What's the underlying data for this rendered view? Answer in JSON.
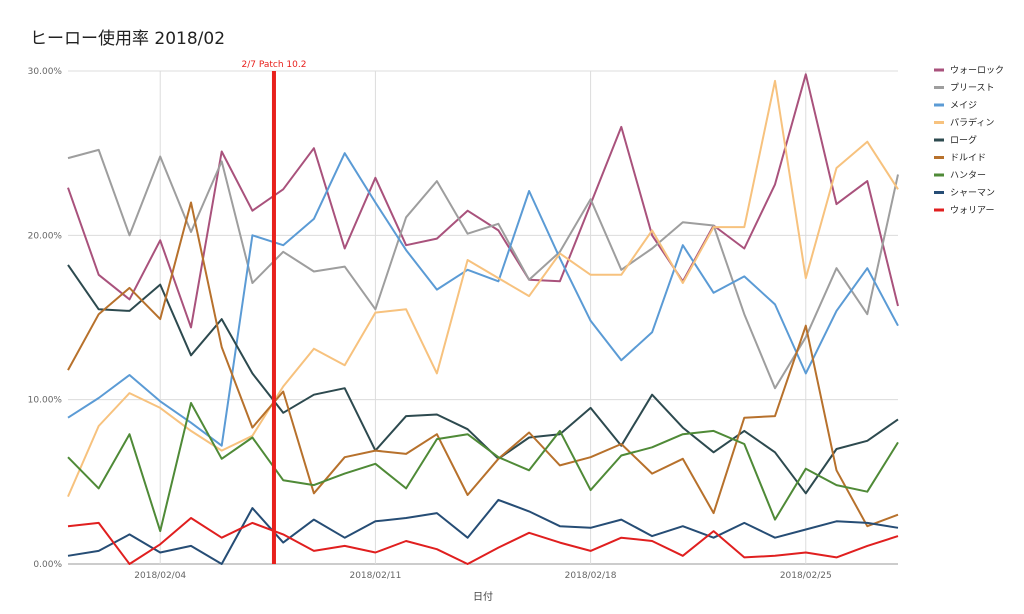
{
  "chart_data": {
    "type": "line",
    "title": "ヒーロー使用率 2018/02",
    "xlabel": "日付",
    "ylabel": "",
    "ylim": [
      0,
      30
    ],
    "grid": true,
    "legend_position": "right",
    "x": [
      "2018/02/01",
      "2018/02/02",
      "2018/02/03",
      "2018/02/04",
      "2018/02/05",
      "2018/02/06",
      "2018/02/07",
      "2018/02/08",
      "2018/02/09",
      "2018/02/10",
      "2018/02/11",
      "2018/02/12",
      "2018/02/13",
      "2018/02/14",
      "2018/02/15",
      "2018/02/16",
      "2018/02/17",
      "2018/02/18",
      "2018/02/19",
      "2018/02/20",
      "2018/02/21",
      "2018/02/22",
      "2018/02/23",
      "2018/02/24",
      "2018/02/25",
      "2018/02/26",
      "2018/02/27",
      "2018/02/28"
    ],
    "x_ticks": [
      "2018/02/04",
      "2018/02/11",
      "2018/02/18",
      "2018/02/25"
    ],
    "y_ticks": [
      "0.00%",
      "10.00%",
      "20.00%",
      "30.00%"
    ],
    "y_tick_values": [
      0,
      10,
      20,
      30
    ],
    "annotation": {
      "label": "2/7 Patch 10.2",
      "x": 6.7,
      "color": "#e8201c"
    },
    "series": [
      {
        "name": "ウォーロック",
        "color": "#a9527c",
        "values": [
          22.9,
          17.6,
          16.1,
          19.7,
          14.4,
          25.1,
          21.5,
          22.8,
          25.3,
          19.2,
          23.5,
          19.4,
          19.8,
          21.5,
          20.3,
          17.3,
          17.2,
          21.9,
          26.6,
          20.0,
          17.2,
          20.6,
          19.2,
          23.1,
          29.8,
          21.9,
          23.3,
          15.7
        ]
      },
      {
        "name": "プリースト",
        "color": "#9e9e9e",
        "values": [
          24.7,
          25.2,
          20.0,
          24.8,
          20.2,
          24.5,
          17.1,
          19.0,
          17.8,
          18.1,
          15.5,
          21.1,
          23.3,
          20.1,
          20.7,
          17.3,
          19.0,
          22.2,
          17.9,
          19.2,
          20.8,
          20.6,
          15.2,
          10.7,
          13.8,
          18.0,
          15.2,
          23.7
        ]
      },
      {
        "name": "メイジ",
        "color": "#5b9bd5",
        "values": [
          8.9,
          10.1,
          11.5,
          9.9,
          8.6,
          7.2,
          20.0,
          19.4,
          21.0,
          25.0,
          22.0,
          19.1,
          16.7,
          17.9,
          17.2,
          22.7,
          18.6,
          14.8,
          12.4,
          14.1,
          19.4,
          16.5,
          17.5,
          15.8,
          11.6,
          15.4,
          18.0,
          14.5
        ]
      },
      {
        "name": "パラディン",
        "color": "#f7c27e",
        "values": [
          4.1,
          8.4,
          10.4,
          9.5,
          8.1,
          6.9,
          7.8,
          10.8,
          13.1,
          12.1,
          15.3,
          15.5,
          11.6,
          18.5,
          17.4,
          16.3,
          18.9,
          17.6,
          17.6,
          20.3,
          17.1,
          20.5,
          20.5,
          29.4,
          17.4,
          24.1,
          25.7,
          22.8
        ]
      },
      {
        "name": "ローグ",
        "color": "#2d4a4f",
        "values": [
          18.2,
          15.5,
          15.4,
          17.0,
          12.7,
          14.9,
          11.6,
          9.2,
          10.3,
          10.7,
          6.9,
          9.0,
          9.1,
          8.2,
          6.4,
          7.7,
          7.9,
          9.5,
          7.2,
          10.3,
          8.3,
          6.8,
          8.1,
          6.8,
          4.3,
          7.0,
          7.5,
          8.8
        ]
      },
      {
        "name": "ドルイド",
        "color": "#b7712c",
        "values": [
          11.8,
          15.2,
          16.8,
          14.9,
          22.0,
          13.2,
          8.3,
          10.5,
          4.3,
          6.5,
          6.9,
          6.7,
          7.9,
          4.2,
          6.4,
          8.0,
          6.0,
          6.5,
          7.3,
          5.5,
          6.4,
          3.1,
          8.9,
          9.0,
          14.5,
          5.7,
          2.3,
          3.0
        ]
      },
      {
        "name": "ハンター",
        "color": "#4f8a37",
        "values": [
          6.5,
          4.6,
          7.9,
          2.0,
          9.8,
          6.4,
          7.7,
          5.1,
          4.8,
          5.5,
          6.1,
          4.6,
          7.6,
          7.9,
          6.5,
          5.7,
          8.1,
          4.5,
          6.6,
          7.1,
          7.9,
          8.1,
          7.3,
          2.7,
          5.8,
          4.8,
          4.4,
          7.4
        ]
      },
      {
        "name": "シャーマン",
        "color": "#264d75",
        "values": [
          0.5,
          0.8,
          1.8,
          0.7,
          1.1,
          0.0,
          3.4,
          1.3,
          2.7,
          1.6,
          2.6,
          2.8,
          3.1,
          1.6,
          3.9,
          3.2,
          2.3,
          2.2,
          2.7,
          1.7,
          2.3,
          1.6,
          2.5,
          1.6,
          2.1,
          2.6,
          2.5,
          2.2
        ]
      },
      {
        "name": "ウォリアー",
        "color": "#e01f1f",
        "values": [
          2.3,
          2.5,
          0.0,
          1.2,
          2.8,
          1.6,
          2.5,
          1.8,
          0.8,
          1.1,
          0.7,
          1.4,
          0.9,
          0.0,
          1.0,
          1.9,
          1.3,
          0.8,
          1.6,
          1.4,
          0.5,
          2.0,
          0.4,
          0.5,
          0.7,
          0.4,
          1.1,
          1.7
        ]
      }
    ]
  }
}
